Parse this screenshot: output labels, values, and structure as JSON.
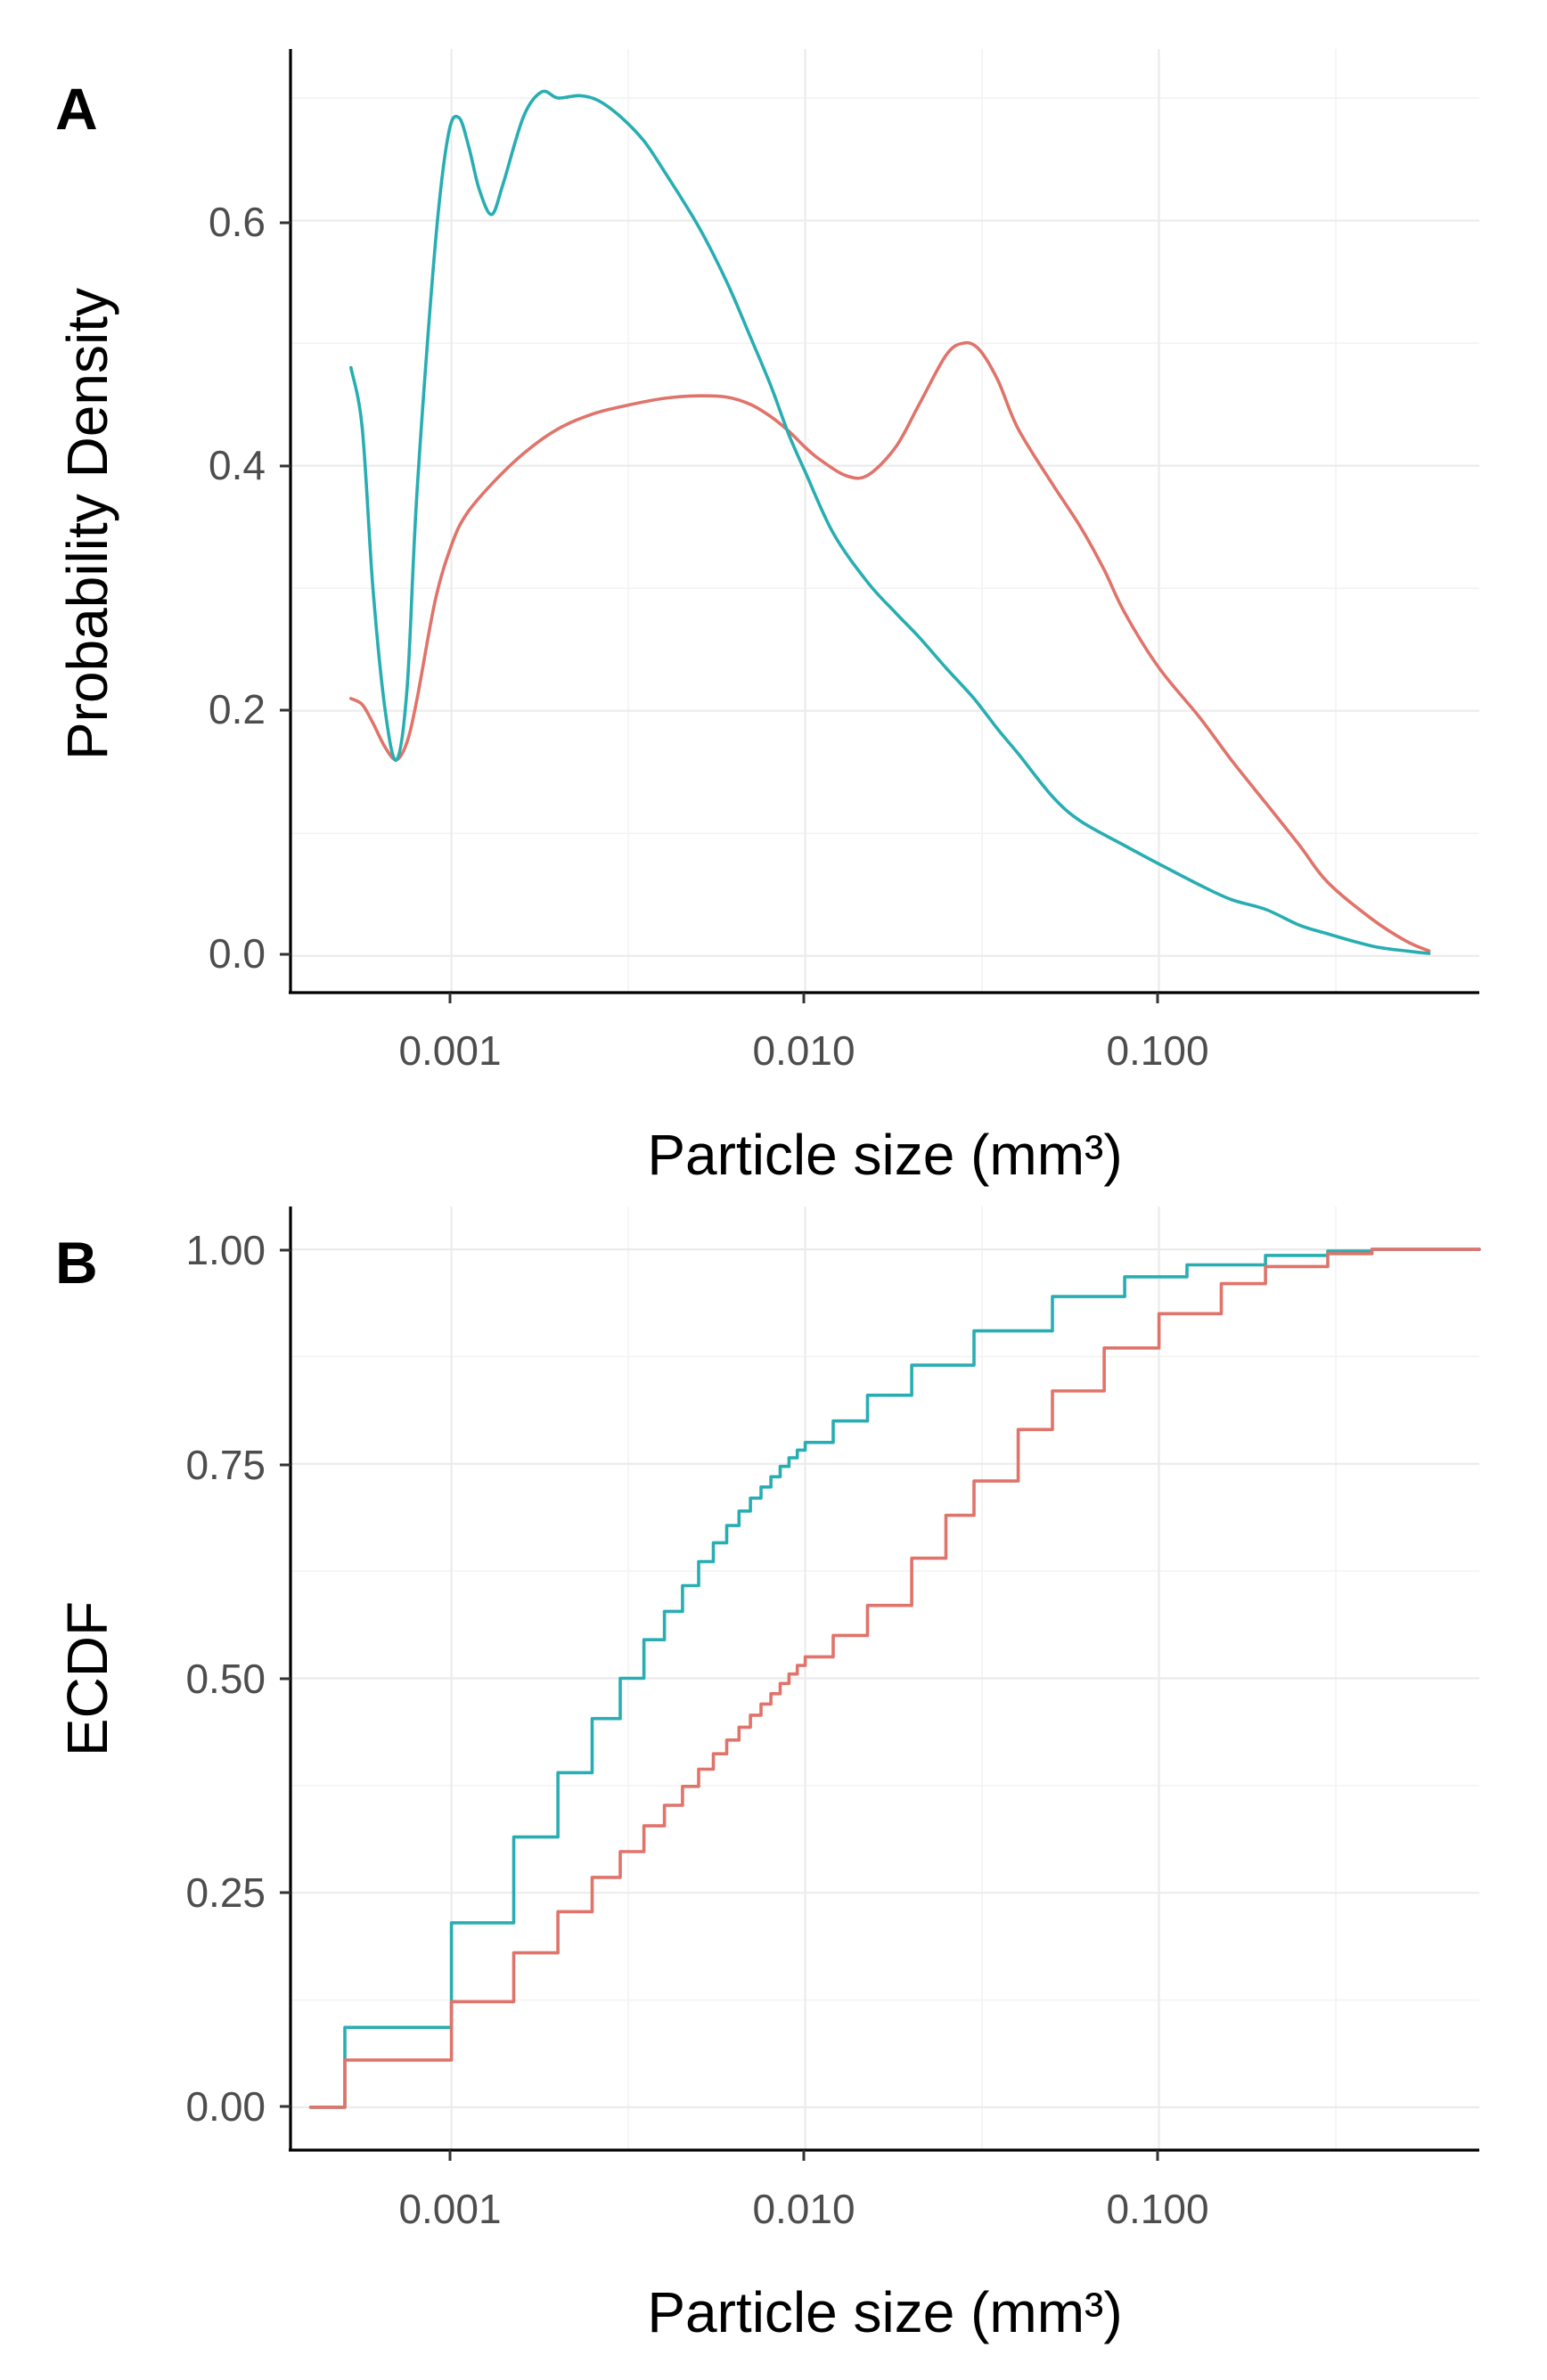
{
  "chart_data": [
    {
      "panel": "A",
      "type": "line",
      "xscale": "log10",
      "xlabel": "Particle size (mm³)",
      "ylabel": "Probability Density",
      "xlim": [
        0.0004,
        0.75
      ],
      "ylim": [
        -0.03,
        0.74
      ],
      "xticks": [
        0.001,
        0.01,
        0.1
      ],
      "xtick_labels": [
        "0.001",
        "0.010",
        "0.100"
      ],
      "yticks": [
        0,
        0.2,
        0.4,
        0.6
      ],
      "ytick_labels": [
        "0.0",
        "0.2",
        "0.4",
        "0.6"
      ],
      "grid": true,
      "series": [
        {
          "name": "red",
          "color": "#e0736a",
          "x": [
            0.00052,
            0.00056,
            0.0006,
            0.00065,
            0.0007,
            0.00075,
            0.0008,
            0.0009,
            0.001,
            0.0011,
            0.0013,
            0.0016,
            0.002,
            0.0025,
            0.003,
            0.004,
            0.005,
            0.006,
            0.007,
            0.008,
            0.009,
            0.01,
            0.011,
            0.013,
            0.015,
            0.018,
            0.021,
            0.025,
            0.028,
            0.031,
            0.035,
            0.04,
            0.05,
            0.06,
            0.07,
            0.08,
            0.1,
            0.13,
            0.16,
            0.2,
            0.25,
            0.3,
            0.4,
            0.5,
            0.58
          ],
          "y": [
            0.21,
            0.205,
            0.19,
            0.17,
            0.16,
            0.175,
            0.21,
            0.29,
            0.335,
            0.36,
            0.385,
            0.41,
            0.43,
            0.442,
            0.448,
            0.455,
            0.457,
            0.456,
            0.45,
            0.44,
            0.428,
            0.415,
            0.405,
            0.392,
            0.392,
            0.415,
            0.45,
            0.49,
            0.5,
            0.495,
            0.47,
            0.43,
            0.385,
            0.35,
            0.315,
            0.28,
            0.235,
            0.195,
            0.16,
            0.125,
            0.09,
            0.06,
            0.03,
            0.012,
            0.004
          ]
        },
        {
          "name": "teal",
          "color": "#28aeb2",
          "x": [
            0.00052,
            0.00056,
            0.0006,
            0.00065,
            0.0007,
            0.00075,
            0.0008,
            0.0009,
            0.00098,
            0.00105,
            0.00112,
            0.0012,
            0.0013,
            0.0014,
            0.0016,
            0.0018,
            0.002,
            0.0023,
            0.0026,
            0.003,
            0.0035,
            0.004,
            0.005,
            0.006,
            0.007,
            0.008,
            0.009,
            0.01,
            0.012,
            0.015,
            0.018,
            0.021,
            0.025,
            0.03,
            0.035,
            0.04,
            0.05,
            0.06,
            0.08,
            0.1,
            0.13,
            0.16,
            0.2,
            0.25,
            0.3,
            0.4,
            0.5,
            0.58
          ],
          "y": [
            0.48,
            0.43,
            0.3,
            0.2,
            0.16,
            0.22,
            0.38,
            0.58,
            0.67,
            0.684,
            0.66,
            0.625,
            0.605,
            0.63,
            0.685,
            0.705,
            0.7,
            0.702,
            0.698,
            0.685,
            0.665,
            0.64,
            0.595,
            0.55,
            0.505,
            0.465,
            0.425,
            0.395,
            0.345,
            0.305,
            0.28,
            0.26,
            0.235,
            0.21,
            0.185,
            0.165,
            0.13,
            0.11,
            0.09,
            0.075,
            0.058,
            0.046,
            0.038,
            0.025,
            0.018,
            0.008,
            0.004,
            0.002
          ]
        }
      ]
    },
    {
      "panel": "B",
      "type": "line",
      "step": true,
      "xscale": "log10",
      "xlabel": "Particle size (mm³)",
      "ylabel": "ECDF",
      "xlim": [
        0.0004,
        0.75
      ],
      "ylim": [
        -0.05,
        1.05
      ],
      "xticks": [
        0.001,
        0.01,
        0.1
      ],
      "xtick_labels": [
        "0.001",
        "0.010",
        "0.100"
      ],
      "yticks": [
        0,
        0.25,
        0.5,
        0.75,
        1
      ],
      "ytick_labels": [
        "0.00",
        "0.25",
        "0.50",
        "0.75",
        "1.00"
      ],
      "grid": true,
      "series": [
        {
          "name": "teal",
          "color": "#28aeb2",
          "x": [
            0.0004,
            0.0005,
            0.001,
            0.0015,
            0.002,
            0.0025,
            0.003,
            0.0035,
            0.004,
            0.0045,
            0.005,
            0.0055,
            0.006,
            0.0065,
            0.007,
            0.0075,
            0.008,
            0.0085,
            0.009,
            0.0095,
            0.01,
            0.012,
            0.015,
            0.02,
            0.03,
            0.05,
            0.08,
            0.12,
            0.2,
            0.3,
            0.4,
            0.75
          ],
          "y": [
            0,
            0.093,
            0.215,
            0.315,
            0.39,
            0.453,
            0.5,
            0.545,
            0.578,
            0.608,
            0.636,
            0.658,
            0.678,
            0.695,
            0.71,
            0.723,
            0.735,
            0.747,
            0.757,
            0.766,
            0.775,
            0.8,
            0.83,
            0.865,
            0.905,
            0.945,
            0.968,
            0.982,
            0.993,
            0.998,
            1,
            1
          ]
        },
        {
          "name": "red",
          "color": "#e0736a",
          "x": [
            0.0004,
            0.0005,
            0.001,
            0.0015,
            0.002,
            0.0025,
            0.003,
            0.0035,
            0.004,
            0.0045,
            0.005,
            0.0055,
            0.006,
            0.0065,
            0.007,
            0.0075,
            0.008,
            0.0085,
            0.009,
            0.0095,
            0.01,
            0.012,
            0.015,
            0.02,
            0.025,
            0.03,
            0.04,
            0.05,
            0.07,
            0.1,
            0.15,
            0.2,
            0.3,
            0.4,
            0.75
          ],
          "y": [
            0,
            0.055,
            0.123,
            0.18,
            0.228,
            0.268,
            0.298,
            0.328,
            0.352,
            0.374,
            0.394,
            0.412,
            0.428,
            0.443,
            0.457,
            0.47,
            0.482,
            0.494,
            0.505,
            0.515,
            0.525,
            0.55,
            0.585,
            0.64,
            0.69,
            0.73,
            0.79,
            0.835,
            0.885,
            0.925,
            0.96,
            0.98,
            0.995,
            1,
            1
          ]
        }
      ]
    }
  ],
  "panels": {
    "a": {
      "label": "A",
      "ylabel": "Probability Density",
      "xlabel": "Particle size (mm³)",
      "xtick_labels": [
        "0.001",
        "0.010",
        "0.100"
      ],
      "ytick_labels": [
        "0.0",
        "0.2",
        "0.4",
        "0.6"
      ]
    },
    "b": {
      "label": "B",
      "ylabel": "ECDF",
      "xlabel": "Particle size (mm³)",
      "xtick_labels": [
        "0.001",
        "0.010",
        "0.100"
      ],
      "ytick_labels": [
        "0.00",
        "0.25",
        "0.50",
        "0.75",
        "1.00"
      ]
    }
  }
}
